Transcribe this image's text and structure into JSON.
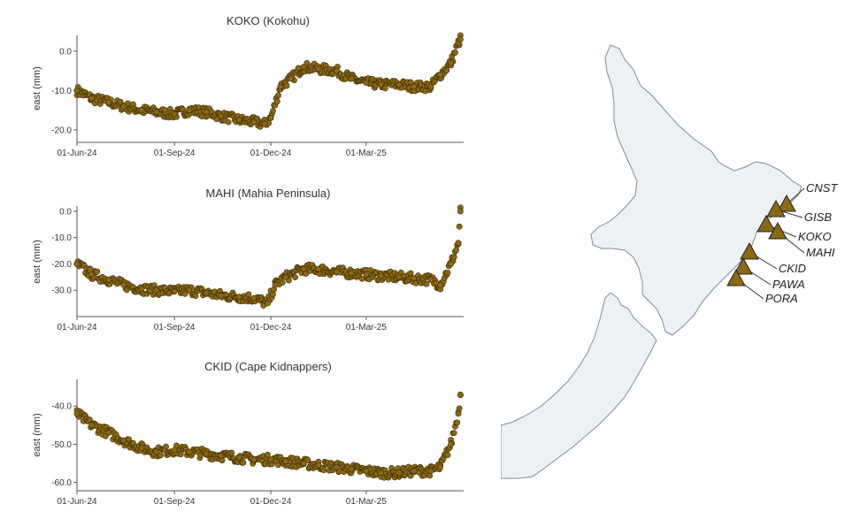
{
  "chart_data": [
    {
      "type": "scatter",
      "title": "KOKO (Kokohu)",
      "ylabel": "east (mm)",
      "ylim": [
        -22.5,
        4
      ],
      "yticks": [
        0.0,
        -10.0,
        -20.0
      ],
      "ytick_labels": [
        "0.0",
        "-10.0",
        "-20.0"
      ],
      "xlim": [
        "2024-06-01",
        "2025-06-01"
      ],
      "xticks": [
        "2024-06-01",
        "2024-09-01",
        "2024-12-01",
        "2025-03-01"
      ],
      "xtick_labels": [
        "01-Jun-24",
        "01-Sep-24",
        "01-Dec-24",
        "01-Mar-25"
      ],
      "marker_color": "#8b6914",
      "series": [
        {
          "x": [
            "2024-06-01",
            "2024-06-15",
            "2024-07-01",
            "2024-07-15",
            "2024-08-01",
            "2024-08-15",
            "2024-09-01",
            "2024-09-15",
            "2024-10-01",
            "2024-10-15",
            "2024-11-01",
            "2024-11-15",
            "2024-11-25",
            "2024-12-01",
            "2024-12-10",
            "2024-12-20",
            "2025-01-01",
            "2025-01-15",
            "2025-02-01",
            "2025-02-15",
            "2025-03-01",
            "2025-03-15",
            "2025-04-01",
            "2025-04-15",
            "2025-05-01",
            "2025-05-10",
            "2025-05-20",
            "2025-05-27",
            "2025-05-29"
          ],
          "y": [
            -10,
            -12,
            -13,
            -14,
            -15,
            -15.5,
            -16,
            -15,
            -15.5,
            -16.5,
            -17.5,
            -18,
            -18.5,
            -17,
            -9,
            -7,
            -4,
            -4.5,
            -5,
            -7,
            -8,
            -8.5,
            -8.5,
            -9,
            -9,
            -6,
            -3,
            2,
            3
          ]
        }
      ]
    },
    {
      "type": "scatter",
      "title": "MAHI (Mahia Peninsula)",
      "ylabel": "east (mm)",
      "ylim": [
        -39,
        2
      ],
      "yticks": [
        0.0,
        -10.0,
        -20.0,
        -30.0
      ],
      "ytick_labels": [
        "0.0",
        "-10.0",
        "-20.0",
        "-30.0"
      ],
      "xlim": [
        "2024-06-01",
        "2025-06-01"
      ],
      "xticks": [
        "2024-06-01",
        "2024-09-01",
        "2024-12-01",
        "2025-03-01"
      ],
      "xtick_labels": [
        "01-Jun-24",
        "01-Sep-24",
        "01-Dec-24",
        "01-Mar-25"
      ],
      "marker_color": "#8b6914",
      "series": [
        {
          "x": [
            "2024-06-01",
            "2024-06-15",
            "2024-07-01",
            "2024-07-15",
            "2024-08-01",
            "2024-08-15",
            "2024-09-01",
            "2024-09-15",
            "2024-10-01",
            "2024-10-15",
            "2024-11-01",
            "2024-11-15",
            "2024-11-28",
            "2024-12-05",
            "2024-12-15",
            "2025-01-01",
            "2025-01-15",
            "2025-02-01",
            "2025-02-15",
            "2025-03-01",
            "2025-03-15",
            "2025-04-01",
            "2025-04-15",
            "2025-05-01",
            "2025-05-10",
            "2025-05-20",
            "2025-05-27",
            "2025-05-29"
          ],
          "y": [
            -20,
            -24,
            -26,
            -28,
            -29.5,
            -30,
            -30.5,
            -30,
            -31,
            -32,
            -32.5,
            -33,
            -35,
            -28,
            -25,
            -22,
            -22,
            -23,
            -23.5,
            -24,
            -24.5,
            -25,
            -25.5,
            -26,
            -28,
            -20,
            -12,
            0
          ]
        }
      ]
    },
    {
      "type": "scatter",
      "title": "CKID (Cape Kidnappers)",
      "ylabel": "east (mm)",
      "ylim": [
        -61.5,
        -33
      ],
      "yticks": [
        -40.0,
        -50.0,
        -60.0
      ],
      "ytick_labels": [
        "-40.0",
        "-50.0",
        "-60.0"
      ],
      "xlim": [
        "2024-06-01",
        "2025-06-01"
      ],
      "xticks": [
        "2024-06-01",
        "2024-09-01",
        "2024-12-01",
        "2025-03-01"
      ],
      "xtick_labels": [
        "01-Jun-24",
        "01-Sep-24",
        "01-Dec-24",
        "01-Mar-25"
      ],
      "marker_color": "#8b6914",
      "series": [
        {
          "x": [
            "2024-06-01",
            "2024-06-15",
            "2024-07-01",
            "2024-07-15",
            "2024-08-01",
            "2024-08-15",
            "2024-09-01",
            "2024-09-15",
            "2024-10-01",
            "2024-10-15",
            "2024-11-01",
            "2024-11-15",
            "2024-12-01",
            "2024-12-15",
            "2025-01-01",
            "2025-01-15",
            "2025-02-01",
            "2025-02-15",
            "2025-03-01",
            "2025-03-15",
            "2025-04-01",
            "2025-04-15",
            "2025-05-01",
            "2025-05-10",
            "2025-05-20",
            "2025-05-27",
            "2025-05-29"
          ],
          "y": [
            -42,
            -45,
            -47,
            -49,
            -51,
            -52,
            -51.5,
            -52,
            -52.5,
            -53,
            -53.5,
            -54,
            -54,
            -54.5,
            -55,
            -55.5,
            -56,
            -56.5,
            -57,
            -57.5,
            -57.5,
            -57,
            -57,
            -56,
            -50,
            -42,
            -37
          ]
        }
      ]
    }
  ],
  "map": {
    "land_color": "#eef1f4",
    "coast_color": "#7f8c99",
    "marker_color": "#8b6914",
    "stations": [
      {
        "name": "CNST"
      },
      {
        "name": "GISB"
      },
      {
        "name": "KOKO"
      },
      {
        "name": "MAHI"
      },
      {
        "name": "CKID"
      },
      {
        "name": "PAWA"
      },
      {
        "name": "PORA"
      }
    ]
  }
}
